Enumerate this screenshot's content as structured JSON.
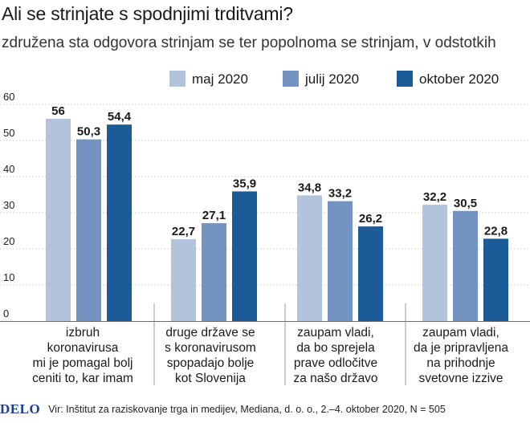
{
  "chart_data": {
    "type": "bar",
    "title": "Ali se strinjate s spodnjimi trditvami?",
    "subtitle": "združena sta odgovora strinjam se ter popolnoma se strinjam, v odstotkih",
    "categories": [
      [
        "izbruh",
        "koronavirusa",
        "mi je pomagal bolj",
        "ceniti to, kar imam"
      ],
      [
        "druge države se",
        "s koronavirusom",
        "spopadajo bolje",
        "kot Slovenija"
      ],
      [
        "zaupam vladi,",
        "da bo sprejela",
        "prave odločitve",
        "za našo državo"
      ],
      [
        "zaupam vladi,",
        "da je pripravljena",
        "na prihodnje",
        "svetovne izzive"
      ]
    ],
    "series": [
      {
        "name": "maj 2020",
        "values": [
          56,
          22.7,
          34.8,
          32.2
        ],
        "labels": [
          "56",
          "22,7",
          "34,8",
          "32,2"
        ],
        "color": "#b4c3dc"
      },
      {
        "name": "julij 2020",
        "values": [
          50.3,
          27.1,
          33.2,
          30.5
        ],
        "labels": [
          "50,3",
          "27,1",
          "33,2",
          "30,5"
        ],
        "color": "#7393c0"
      },
      {
        "name": "oktober 2020",
        "values": [
          54.4,
          35.9,
          26.2,
          22.8
        ],
        "labels": [
          "54,4",
          "35,9",
          "26,2",
          "22,8"
        ],
        "color": "#1a5b98"
      }
    ],
    "yticks": [
      "0",
      "10",
      "20",
      "30",
      "40",
      "50",
      "60"
    ],
    "ylim": [
      0,
      60
    ],
    "grid": true,
    "legend": "top-right"
  },
  "footer": {
    "logo": "DELO",
    "source": "Vir: Inštitut za raziskovanje trga in medijev, Mediana, d. o. o., 2.–4. oktober 2020, N = 505"
  }
}
